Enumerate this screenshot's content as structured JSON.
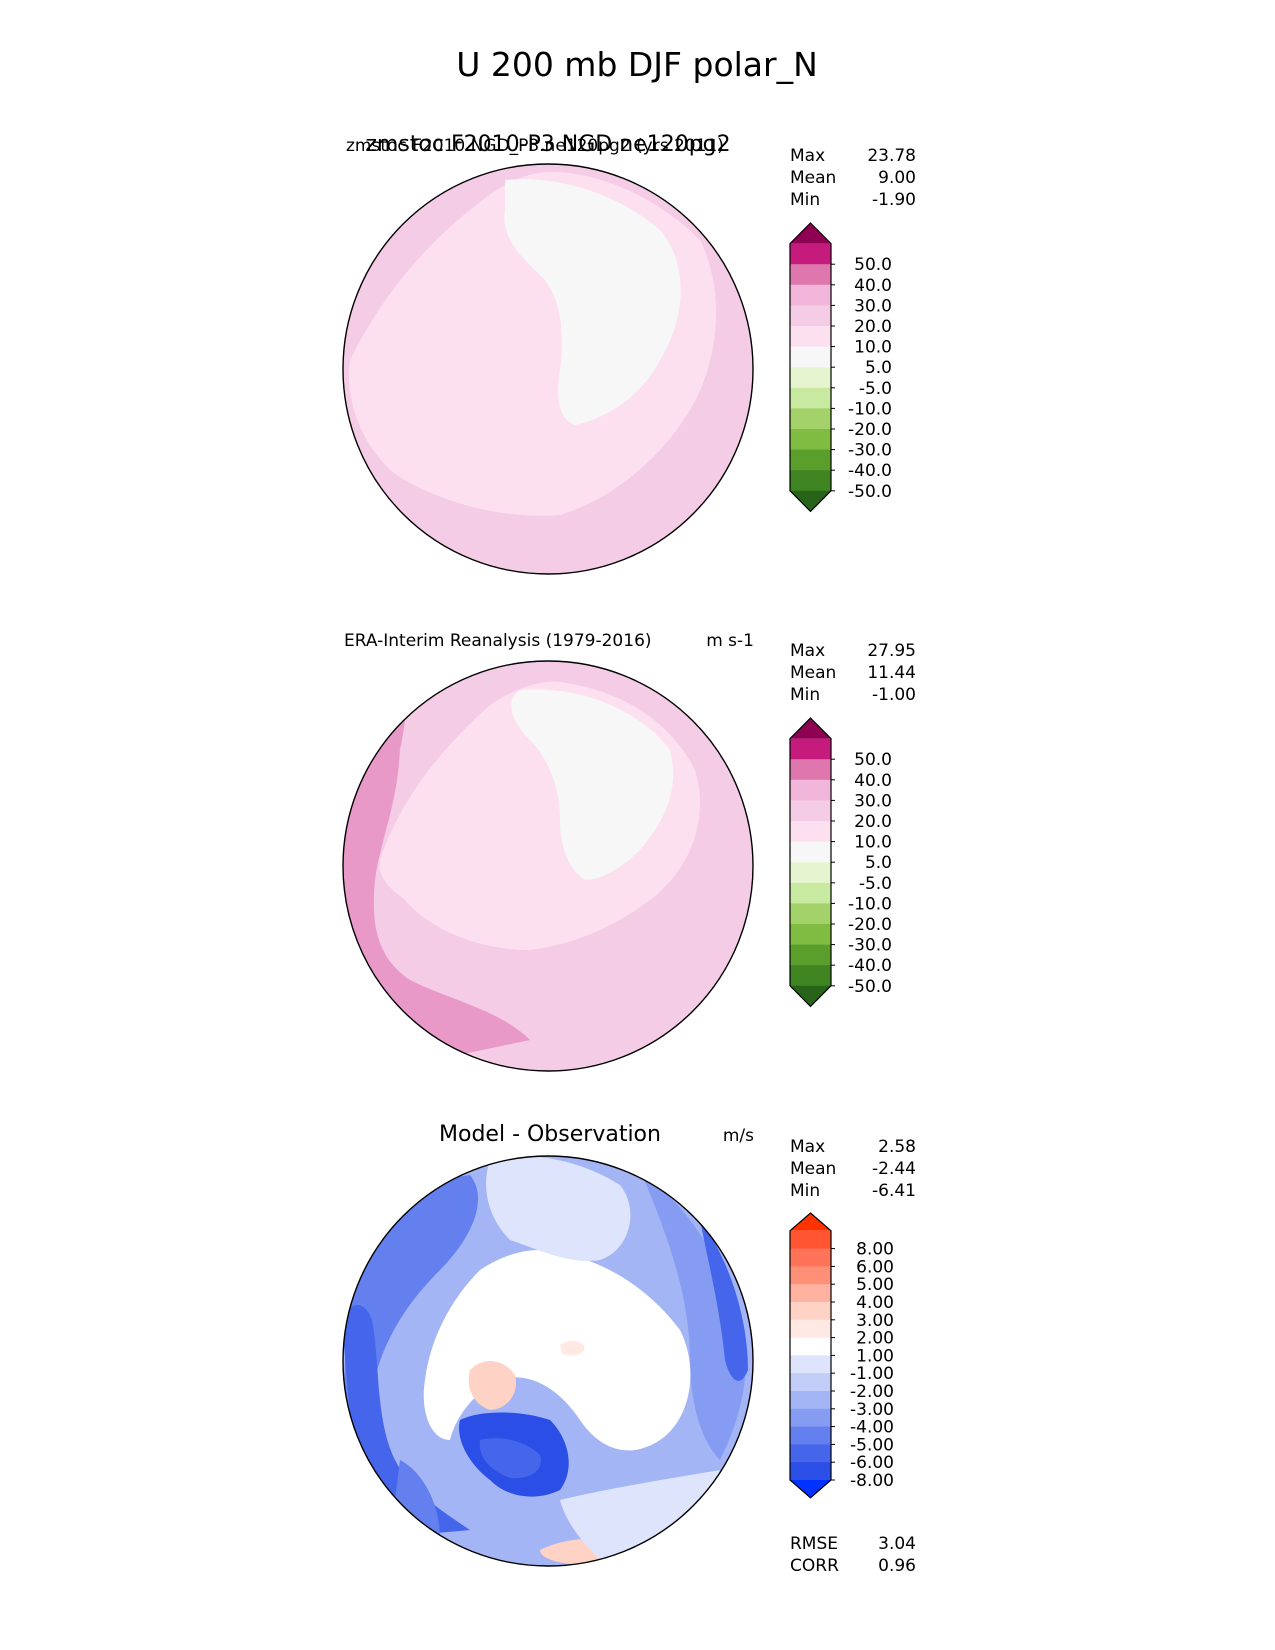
{
  "figure": {
    "title": "U 200 mb DJF polar_N"
  },
  "panels": [
    {
      "name": "test",
      "title_left": "zmstoc F2010 NGD_P3.ne120pg2 (yrs 2011)",
      "title_left_overlay": "zmstoc F2010-P3 NGD ne120pg2",
      "title_right": "",
      "stats": [
        {
          "label": "Max",
          "value": "23.78"
        },
        {
          "label": "Mean",
          "value": "9.00"
        },
        {
          "label": "Min",
          "value": "-1.90"
        }
      ]
    },
    {
      "name": "reference",
      "title_left": "ERA-Interim Reanalysis (1979-2016)",
      "title_right": "m s-1",
      "stats": [
        {
          "label": "Max",
          "value": "27.95"
        },
        {
          "label": "Mean",
          "value": "11.44"
        },
        {
          "label": "Min",
          "value": "-1.00"
        }
      ]
    },
    {
      "name": "diff",
      "title_center": "Model - Observation",
      "title_right": "m/s",
      "stats": [
        {
          "label": "Max",
          "value": "2.58"
        },
        {
          "label": "Mean",
          "value": "-2.44"
        },
        {
          "label": "Min",
          "value": "-6.41"
        }
      ],
      "metrics": [
        {
          "label": "RMSE",
          "value": "3.04"
        },
        {
          "label": "CORR",
          "value": "0.96"
        }
      ]
    }
  ],
  "colorbars": {
    "field": {
      "labels": [
        "50.0",
        "40.0",
        "30.0",
        "20.0",
        "10.0",
        "5.0",
        "-5.0",
        "-10.0",
        "-20.0",
        "-30.0",
        "-40.0",
        "-50.0"
      ],
      "colors": [
        "#8e0152",
        "#c51b7d",
        "#de77ae",
        "#f1b6da",
        "#f5cce5",
        "#fde0ef",
        "#f7f7f7",
        "#e6f5d0",
        "#c7e9a0",
        "#a3d26a",
        "#7fbc41",
        "#5a9e2c",
        "#3f8522",
        "#276419"
      ]
    },
    "diff": {
      "labels": [
        "8.00",
        "6.00",
        "5.00",
        "4.00",
        "3.00",
        "2.00",
        "1.00",
        "-1.00",
        "-2.00",
        "-3.00",
        "-4.00",
        "-5.00",
        "-6.00",
        "-8.00"
      ],
      "colors": [
        "#ff3300",
        "#ff5533",
        "#ff7358",
        "#ff9078",
        "#ffb2a0",
        "#ffd2c6",
        "#ffe9e2",
        "#ffffff",
        "#dde4fb",
        "#c2cdf8",
        "#a4b5f5",
        "#869cf2",
        "#6380ee",
        "#4566ea",
        "#2b4ee7",
        "#0033ff"
      ]
    }
  },
  "chart_data": {
    "type": "heatmap",
    "title": "U 200 mb DJF polar_N",
    "variable": "U",
    "level": "200 mb",
    "season": "DJF",
    "region": "polar_N",
    "panels": [
      {
        "title": "zmstoc F2010 NGD_P3.ne120pg2 (yrs 2011)",
        "units": "m s-1",
        "max": 23.78,
        "mean": 9.0,
        "min": -1.9,
        "levels": [
          -50,
          -40,
          -30,
          -20,
          -10,
          -5,
          5,
          10,
          20,
          30,
          40,
          50
        ]
      },
      {
        "title": "ERA-Interim Reanalysis (1979-2016)",
        "units": "m s-1",
        "max": 27.95,
        "mean": 11.44,
        "min": -1.0,
        "levels": [
          -50,
          -40,
          -30,
          -20,
          -10,
          -5,
          5,
          10,
          20,
          30,
          40,
          50
        ]
      },
      {
        "title": "Model - Observation",
        "units": "m/s",
        "max": 2.58,
        "mean": -2.44,
        "min": -6.41,
        "rmse": 3.04,
        "corr": 0.96,
        "levels": [
          -8,
          -6,
          -5,
          -4,
          -3,
          -2,
          -1,
          1,
          2,
          3,
          4,
          5,
          6,
          8
        ]
      }
    ]
  }
}
